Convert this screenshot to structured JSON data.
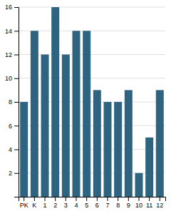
{
  "chart_data": {
    "type": "bar",
    "categories": [
      "PK",
      "K",
      "1",
      "2",
      "3",
      "4",
      "5",
      "6",
      "7",
      "8",
      "9",
      "10",
      "11",
      "12"
    ],
    "values": [
      8,
      14,
      12,
      16,
      12,
      14,
      14,
      9,
      8,
      8,
      9,
      2,
      5,
      9
    ],
    "color": "#2e6480",
    "ylim": [
      0,
      16
    ],
    "yticks": [
      2,
      4,
      6,
      8,
      10,
      12,
      14,
      16
    ],
    "grid": true
  }
}
